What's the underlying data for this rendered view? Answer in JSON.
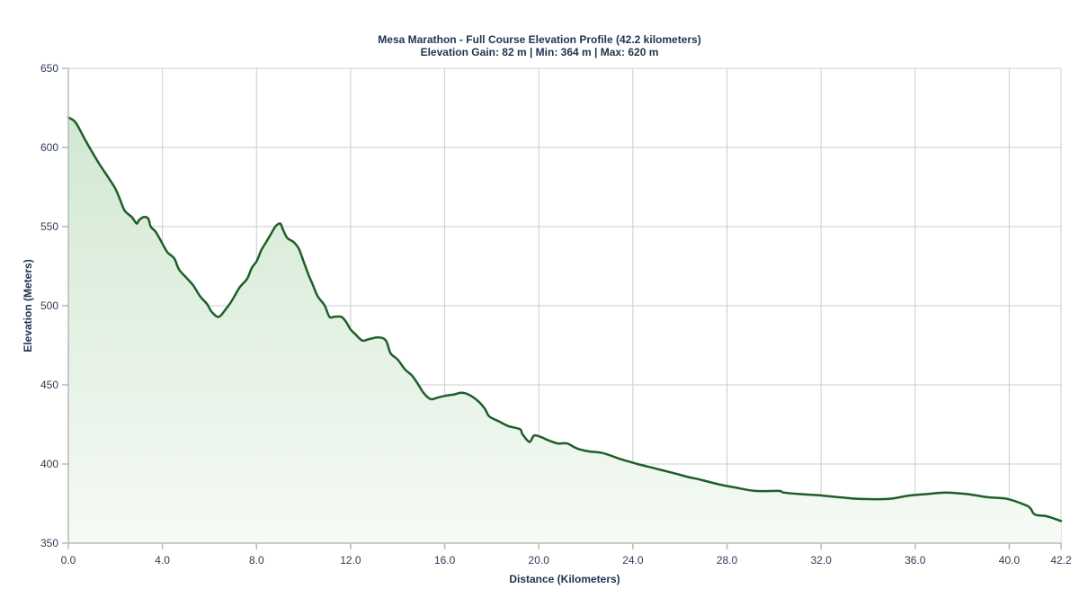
{
  "chart_data": {
    "type": "area",
    "title": "Mesa Marathon - Full Course Elevation Profile (42.2 kilometers)",
    "subtitle": "Elevation Gain: 82 m | Min: 364 m | Max: 620 m",
    "xlabel": "Distance (Kilometers)",
    "ylabel": "Elevation (Meters)",
    "xlim": [
      0,
      42.2
    ],
    "ylim": [
      350,
      650
    ],
    "x_ticks": [
      "0.0",
      "4.0",
      "8.0",
      "12.0",
      "16.0",
      "20.0",
      "24.0",
      "28.0",
      "32.0",
      "36.0",
      "40.0",
      "42.2"
    ],
    "x_tick_values": [
      0,
      4,
      8,
      12,
      16,
      20,
      24,
      28,
      32,
      36,
      40,
      42.2
    ],
    "y_ticks": [
      "350",
      "400",
      "450",
      "500",
      "550",
      "600",
      "650"
    ],
    "y_tick_values": [
      350,
      400,
      450,
      500,
      550,
      600,
      650
    ],
    "grid": true,
    "legend": null,
    "line_color": "#1e5e28",
    "fill_color_top": "#d2e8d2",
    "fill_color_bottom": "#f5faf5",
    "series": [
      {
        "name": "Elevation",
        "x": [
          0.0,
          0.3,
          0.6,
          0.9,
          1.3,
          1.7,
          2.0,
          2.2,
          2.4,
          2.7,
          2.9,
          3.0,
          3.2,
          3.4,
          3.5,
          3.7,
          3.9,
          4.2,
          4.5,
          4.7,
          5.0,
          5.3,
          5.6,
          5.9,
          6.1,
          6.4,
          6.7,
          6.9,
          7.1,
          7.3,
          7.6,
          7.8,
          8.0,
          8.2,
          8.4,
          8.6,
          8.8,
          9.0,
          9.1,
          9.3,
          9.6,
          9.8,
          10.0,
          10.2,
          10.4,
          10.6,
          10.9,
          11.1,
          11.3,
          11.6,
          11.8,
          12.0,
          12.2,
          12.5,
          12.8,
          13.2,
          13.5,
          13.7,
          14.0,
          14.3,
          14.6,
          14.8,
          15.1,
          15.4,
          15.7,
          16.0,
          16.4,
          16.7,
          17.0,
          17.4,
          17.7,
          17.9,
          18.3,
          18.7,
          19.2,
          19.3,
          19.6,
          19.8,
          20.1,
          20.4,
          20.8,
          21.2,
          21.6,
          22.1,
          22.7,
          23.5,
          24.2,
          25.0,
          25.8,
          26.3,
          26.9,
          27.7,
          28.4,
          29.2,
          30.2,
          30.4,
          31.1,
          32.1,
          32.8,
          33.6,
          34.9,
          35.7,
          36.5,
          37.3,
          38.2,
          39.1,
          39.9,
          40.7,
          40.9,
          41.1,
          41.6,
          42.2
        ],
        "y": [
          619,
          616,
          608,
          600,
          590,
          581,
          574,
          567,
          560,
          556,
          552,
          554,
          556,
          555,
          550,
          547,
          542,
          534,
          530,
          523,
          518,
          513,
          506,
          501,
          496,
          493,
          498,
          502,
          507,
          512,
          517,
          524,
          528,
          535,
          540,
          545,
          550,
          552,
          549,
          543,
          540,
          536,
          528,
          520,
          513,
          506,
          500,
          493,
          493,
          493,
          490,
          485,
          482,
          478,
          479,
          480,
          478,
          470,
          466,
          460,
          456,
          452,
          445,
          441,
          442,
          443,
          444,
          445,
          444,
          440,
          435,
          430,
          427,
          424,
          422,
          419,
          414,
          418,
          417,
          415,
          413,
          413,
          410,
          408,
          407,
          403,
          400,
          397,
          394,
          392,
          390,
          387,
          385,
          383,
          383,
          382,
          381,
          380,
          379,
          378,
          378,
          380,
          381,
          382,
          381,
          379,
          378,
          374,
          372,
          368,
          367,
          364
        ]
      }
    ]
  }
}
